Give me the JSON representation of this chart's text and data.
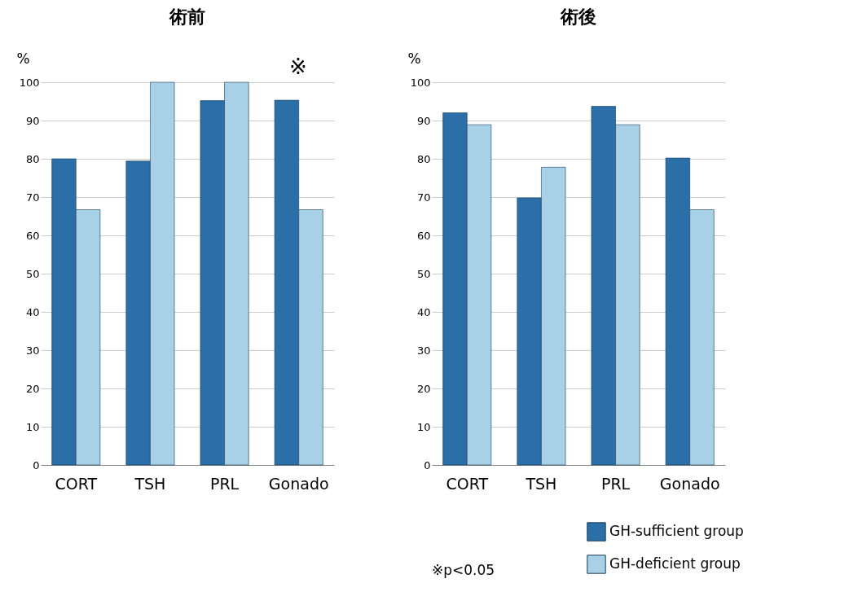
{
  "chart_data": [
    {
      "type": "bar",
      "title": "術前",
      "ylabel": "%",
      "categories": [
        "CORT",
        "TSH",
        "PRL",
        "Gonado"
      ],
      "series": [
        {
          "color": "#2a6fa8",
          "values": [
            80,
            79.4,
            95.2,
            95.3
          ]
        },
        {
          "color": "#a8d0e6",
          "values": [
            66.7,
            100,
            100,
            66.7
          ]
        }
      ],
      "ylim": [
        0,
        100
      ],
      "yticks": [
        0,
        10,
        20,
        30,
        40,
        50,
        60,
        70,
        80,
        90,
        100
      ],
      "grid": "y",
      "legend": false,
      "annotations": [
        "※"
      ]
    },
    {
      "type": "bar",
      "title": "術後",
      "ylabel": "%",
      "categories": [
        "CORT",
        "TSH",
        "PRL",
        "Gonado"
      ],
      "series": [
        {
          "name": "GH-sufficient group",
          "color": "#2a6fa8",
          "values": [
            92,
            69.8,
            93.7,
            80.2
          ]
        },
        {
          "name": "GH-deficient group",
          "color": "#a8d0e6",
          "values": [
            88.9,
            77.8,
            88.9,
            66.7
          ]
        }
      ],
      "ylim": [
        0,
        100
      ],
      "yticks": [
        0,
        10,
        20,
        30,
        40,
        50,
        60,
        70,
        80,
        90,
        100
      ],
      "grid": "y",
      "legend": "bottom right",
      "annotations": [
        "※p<0.05"
      ]
    }
  ]
}
